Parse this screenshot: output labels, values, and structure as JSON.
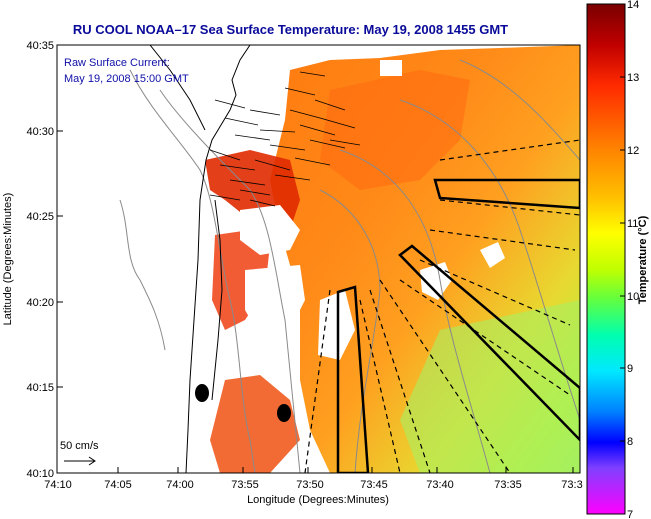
{
  "title": "RU COOL  NOAA–17  Sea Surface Temperature:  May 19, 2008 1455 GMT",
  "overlay": {
    "line1": "Raw Surface Current:",
    "line2": "May 19, 2008 15:00 GMT"
  },
  "axes": {
    "xlabel": "Longitude (Degrees:Minutes)",
    "ylabel": "Latitude (Degrees:Minutes)",
    "xticks": [
      "74:10",
      "74:05",
      "74:00",
      "73:55",
      "73:50",
      "73:45",
      "73:40",
      "73:35",
      "73:3"
    ],
    "yticks": [
      "40:35",
      "40:30",
      "40:25",
      "40:20",
      "40:15",
      "40:10"
    ]
  },
  "scale": {
    "label": "50 cm/s"
  },
  "colorbar": {
    "label": "Temperature (°C)",
    "ticks": [
      "14",
      "13",
      "12",
      "11",
      "10",
      "9",
      "8",
      "7"
    ]
  },
  "colors": {
    "title": "#0a0a9a",
    "overlay": "#1010a8",
    "land": "#ffffff",
    "coast": "#000000"
  }
}
